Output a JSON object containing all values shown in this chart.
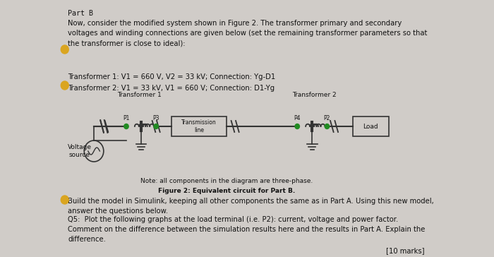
{
  "bg_color": "#d0ccc8",
  "title": "Part B",
  "para1": "Now, consider the modified system shown in Figure 2. The transformer primary and secondary\nvoltages and winding connections are given below (set the remaining transformer parameters so that\nthe transformer is close to ideal):",
  "trans1": "Transformer 1: V1 = 660 V, V2 = 33 kV; Connection: Yg-D1",
  "trans2": "Transformer 2: V1 = 33 kV, V1 = 660 V; Connection: D1-Yg",
  "diag_label1": "Transformer 1",
  "diag_label2": "Transformer 2",
  "p1": "P1",
  "p3": "P3",
  "p4": "P4",
  "p2": "P2",
  "tline": "Transmission\nline",
  "load": "Load",
  "vsource": "Voltage\nsource",
  "note": "Note: all components in the diagram are three-phase.",
  "fig_caption": "Figure 2: Equivalent circuit for Part B.",
  "para2": "Build the model in Simulink, keeping all other components the same as in Part A. Using this new model,\nanswer the questions below.",
  "q5": "Q5:  Plot the following graphs at the load terminal (i.e. P2): current, voltage and power factor.\nComment on the difference between the simulation results here and the results in Part A. Explain the\ndifference.",
  "marks": "[10 marks]",
  "text_color": "#111111",
  "green_dot": "#228B22",
  "line_color": "#333333",
  "box_color": "#444444"
}
